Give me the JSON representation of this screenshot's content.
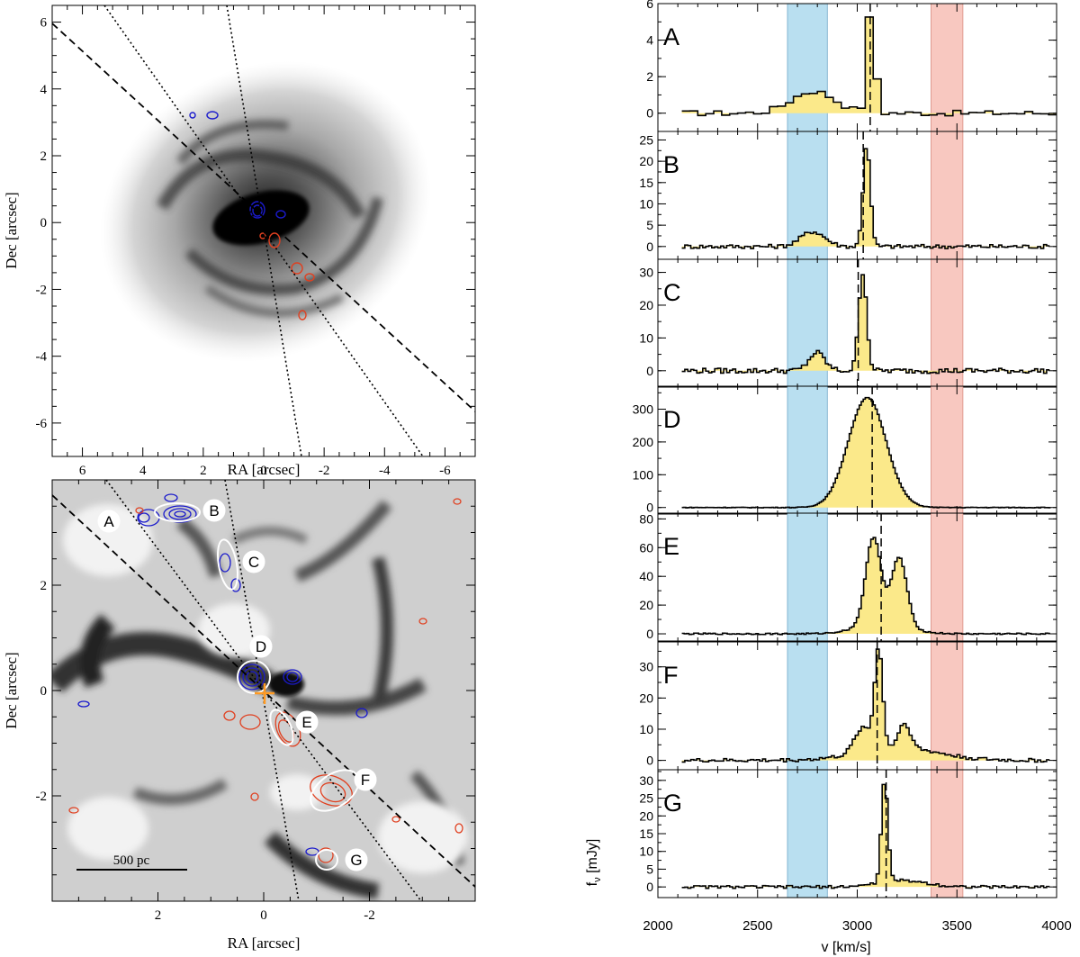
{
  "colors": {
    "blue_contour": "#1a1acc",
    "red_contour": "#e04020",
    "spectrum_fill": "#fbe98a",
    "blue_band": "#b9dff0",
    "red_band": "#f8c8c0",
    "image_light": "#e8e8e8",
    "image_dark": "#111111"
  },
  "chart_data": [
    {
      "type": "image",
      "panel": "top-left",
      "xlabel": "RA [arcsec]",
      "ylabel": "Dec [arcsec]",
      "xlim": [
        7,
        -7
      ],
      "ylim": [
        -7,
        6.5
      ],
      "xticks": [
        "6",
        "4",
        "2",
        "0",
        "-2",
        "-4",
        "-6"
      ],
      "yticks": [
        "6",
        "4",
        "2",
        "0",
        "-2",
        "-4",
        "-6"
      ]
    },
    {
      "type": "image",
      "panel": "bottom-left",
      "xlabel": "RA [arcsec]",
      "ylabel": "Dec [arcsec]",
      "xlim": [
        4,
        -4
      ],
      "ylim": [
        -4,
        4
      ],
      "xticks": [
        "2",
        "0",
        "-2"
      ],
      "yticks": [
        "2",
        "0",
        "-2"
      ],
      "scalebar_label": "500 pc",
      "regions": [
        "A",
        "B",
        "C",
        "D",
        "E",
        "F",
        "G"
      ]
    },
    {
      "type": "line",
      "style": "step-filled",
      "xlabel": "v [km/s]",
      "ylabel": "f",
      "ylabel_sub": "ν",
      "ylabel_unit": "[mJy]",
      "xlim": [
        2000,
        4000
      ],
      "xticks": [
        "2000",
        "2500",
        "3000",
        "3500",
        "4000"
      ],
      "blue_band": [
        2650,
        2850
      ],
      "red_band": [
        3370,
        3530
      ],
      "panels": [
        {
          "label": "A",
          "ylim": [
            -1,
            6
          ],
          "yticks": [
            0,
            2,
            4,
            6
          ],
          "vsys": 3065,
          "components": [
            {
              "center": 3050,
              "sigma": 20,
              "amp": 5.8
            },
            {
              "center": 2760,
              "sigma": 110,
              "amp": 1.2
            }
          ],
          "noise": 0.15,
          "step": 40
        },
        {
          "label": "B",
          "ylim": [
            -3,
            27
          ],
          "yticks": [
            0,
            5,
            10,
            15,
            20,
            25
          ],
          "vsys": 3030,
          "components": [
            {
              "center": 3040,
              "sigma": 18,
              "amp": 24
            },
            {
              "center": 2770,
              "sigma": 60,
              "amp": 3.5
            }
          ],
          "noise": 0.5,
          "step": 15
        },
        {
          "label": "C",
          "ylim": [
            -5,
            34
          ],
          "yticks": [
            0,
            10,
            20,
            30
          ],
          "vsys": 3005,
          "components": [
            {
              "center": 3020,
              "sigma": 20,
              "amp": 30
            },
            {
              "center": 2790,
              "sigma": 40,
              "amp": 5.5
            }
          ],
          "noise": 0.8,
          "step": 15
        },
        {
          "label": "D",
          "ylim": [
            -20,
            370
          ],
          "yticks": [
            0,
            100,
            200,
            300
          ],
          "vsys": 3075,
          "components": [
            {
              "center": 3045,
              "sigma": 95,
              "amp": 335
            }
          ],
          "noise": 1.0,
          "step": 10
        },
        {
          "label": "E",
          "ylim": [
            -5,
            84
          ],
          "yticks": [
            0,
            20,
            40,
            60,
            80
          ],
          "vsys": 3120,
          "components": [
            {
              "center": 3075,
              "sigma": 38,
              "amp": 60
            },
            {
              "center": 3205,
              "sigma": 38,
              "amp": 47
            },
            {
              "center": 3120,
              "sigma": 120,
              "amp": 8
            }
          ],
          "noise": 0.5,
          "step": 12
        },
        {
          "label": "F",
          "ylim": [
            -3,
            38
          ],
          "yticks": [
            0,
            10,
            20,
            30
          ],
          "vsys": 3100,
          "components": [
            {
              "center": 3100,
              "sigma": 20,
              "amp": 32
            },
            {
              "center": 3020,
              "sigma": 40,
              "amp": 8
            },
            {
              "center": 3230,
              "sigma": 30,
              "amp": 8
            },
            {
              "center": 3200,
              "sigma": 200,
              "amp": 4
            }
          ],
          "noise": 0.6,
          "step": 15
        },
        {
          "label": "G",
          "ylim": [
            -3,
            33
          ],
          "yticks": [
            0,
            5,
            10,
            15,
            20,
            25,
            30
          ],
          "vsys": 3145,
          "components": [
            {
              "center": 3130,
              "sigma": 16,
              "amp": 29
            },
            {
              "center": 3220,
              "sigma": 120,
              "amp": 1.8
            }
          ],
          "noise": 0.4,
          "step": 15
        }
      ]
    }
  ]
}
